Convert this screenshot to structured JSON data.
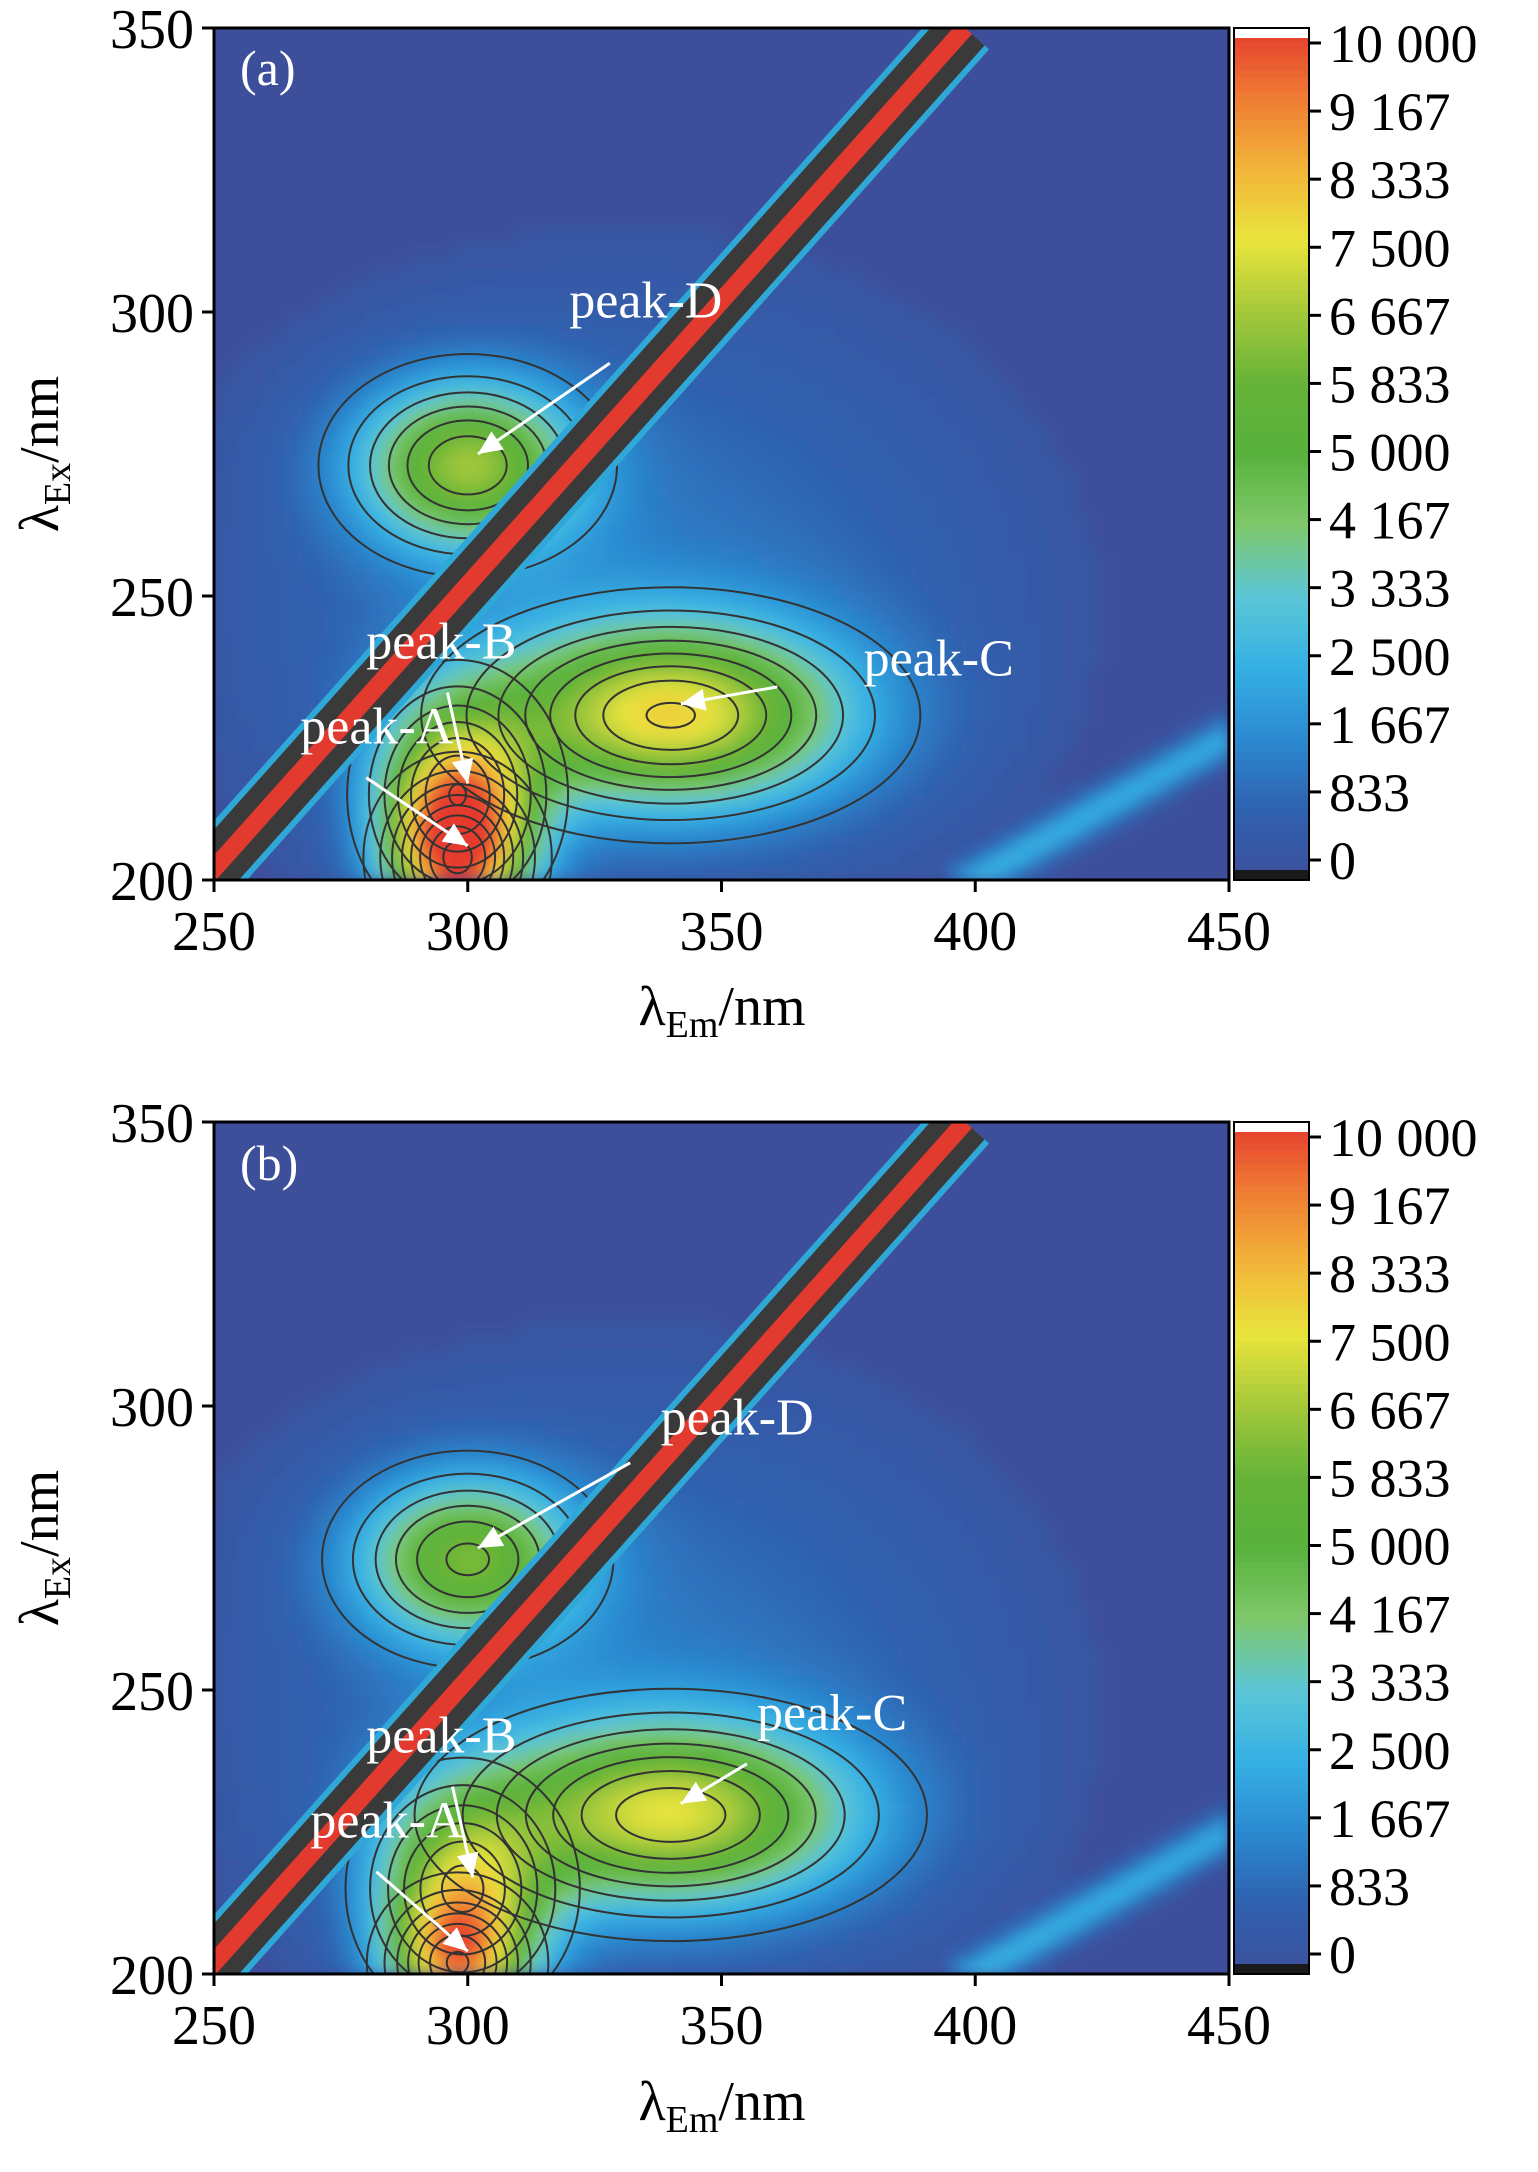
{
  "chart_data": [
    {
      "type": "heatmap",
      "panel_label": "(a)",
      "xlabel_main": "λ",
      "xlabel_sub": "Em",
      "xlabel_unit": "/nm",
      "ylabel_main": "λ",
      "ylabel_sub": "Ex",
      "ylabel_unit": "/nm",
      "xlim": [
        250,
        450
      ],
      "ylim": [
        200,
        350
      ],
      "xticks": [
        "250",
        "300",
        "350",
        "400",
        "450"
      ],
      "yticks": [
        "200",
        "250",
        "300",
        "350"
      ],
      "colorbar_range": [
        0,
        10000
      ],
      "colorbar_ticks": [
        "10 000",
        "9 167",
        "8 333",
        "7 500",
        "6 667",
        "5 833",
        "5 000",
        "4 167",
        "3 333",
        "2 500",
        "1 667",
        "833",
        "0"
      ],
      "contour_levels": [
        833,
        1667,
        2500,
        3333,
        4167,
        5000,
        5833,
        6667,
        7500
      ],
      "scatter_band": {
        "offset_nm": 50,
        "intensity": 10000
      },
      "peaks": [
        {
          "name": "peak-A",
          "em": 298,
          "ex": 204,
          "amplitude": 7000,
          "sigma_em": 9,
          "sigma_ex": 9,
          "label_em": 267,
          "label_ex": 224,
          "arrow_from_em": 280,
          "arrow_from_ex": 218
        },
        {
          "name": "peak-B",
          "em": 298,
          "ex": 215,
          "amplitude": 5900,
          "sigma_em": 11,
          "sigma_ex": 12,
          "label_em": 280,
          "label_ex": 239,
          "arrow_from_em": 296,
          "arrow_from_ex": 233
        },
        {
          "name": "peak-C",
          "em": 340,
          "ex": 229,
          "amplitude": 6800,
          "sigma_em": 24,
          "sigma_ex": 11,
          "label_em": 378,
          "label_ex": 236,
          "arrow_from_em": 361,
          "arrow_from_ex": 234
        },
        {
          "name": "peak-D",
          "em": 300,
          "ex": 273,
          "amplitude": 5700,
          "sigma_em": 15,
          "sigma_ex": 10,
          "label_em": 320,
          "label_ex": 299,
          "arrow_from_em": 328,
          "arrow_from_ex": 291
        }
      ]
    },
    {
      "type": "heatmap",
      "panel_label": "(b)",
      "xlabel_main": "λ",
      "xlabel_sub": "Em",
      "xlabel_unit": "/nm",
      "ylabel_main": "λ",
      "ylabel_sub": "Ex",
      "ylabel_unit": "/nm",
      "xlim": [
        250,
        450
      ],
      "ylim": [
        200,
        350
      ],
      "xticks": [
        "250",
        "300",
        "350",
        "400",
        "450"
      ],
      "yticks": [
        "200",
        "250",
        "300",
        "350"
      ],
      "colorbar_range": [
        0,
        10000
      ],
      "colorbar_ticks": [
        "10 000",
        "9 167",
        "8 333",
        "7 500",
        "6 667",
        "5 833",
        "5 000",
        "4 167",
        "3 333",
        "2 500",
        "1 667",
        "833",
        "0"
      ],
      "contour_levels": [
        833,
        1667,
        2500,
        3333,
        4167,
        5000,
        5833,
        6667,
        7500
      ],
      "scatter_band": {
        "offset_nm": 50,
        "intensity": 10000
      },
      "peaks": [
        {
          "name": "peak-A",
          "em": 298,
          "ex": 202,
          "amplitude": 6000,
          "sigma_em": 9,
          "sigma_ex": 8,
          "label_em": 269,
          "label_ex": 224,
          "arrow_from_em": 282,
          "arrow_from_ex": 218
        },
        {
          "name": "peak-B",
          "em": 299,
          "ex": 215,
          "amplitude": 5300,
          "sigma_em": 12,
          "sigma_ex": 12,
          "label_em": 280,
          "label_ex": 239,
          "arrow_from_em": 297,
          "arrow_from_ex": 233
        },
        {
          "name": "peak-C",
          "em": 340,
          "ex": 228,
          "amplitude": 6400,
          "sigma_em": 25,
          "sigma_ex": 11,
          "label_em": 357,
          "label_ex": 243,
          "arrow_from_em": 355,
          "arrow_from_ex": 237
        },
        {
          "name": "peak-D",
          "em": 300,
          "ex": 273,
          "amplitude": 5200,
          "sigma_em": 15,
          "sigma_ex": 10,
          "label_em": 338,
          "label_ex": 295,
          "arrow_from_em": 332,
          "arrow_from_ex": 290
        }
      ]
    }
  ],
  "colors": {
    "background": "#3d4f9b",
    "colormap": [
      "#3d4f9b",
      "#2f62b0",
      "#2b8ad0",
      "#35b0e4",
      "#5cc6d6",
      "#7fc86a",
      "#58b23c",
      "#66b339",
      "#a5c93a",
      "#e9e43c",
      "#f2b53a",
      "#ef7d33",
      "#e53b2e"
    ],
    "contour_line": "#333333",
    "scatter_band": "#3a3a3a",
    "scatter_core": "#e23a2e",
    "annotation": "#ffffff",
    "colorbar_top": "#ffffff",
    "colorbar_bottom": "#1a1a1a"
  }
}
